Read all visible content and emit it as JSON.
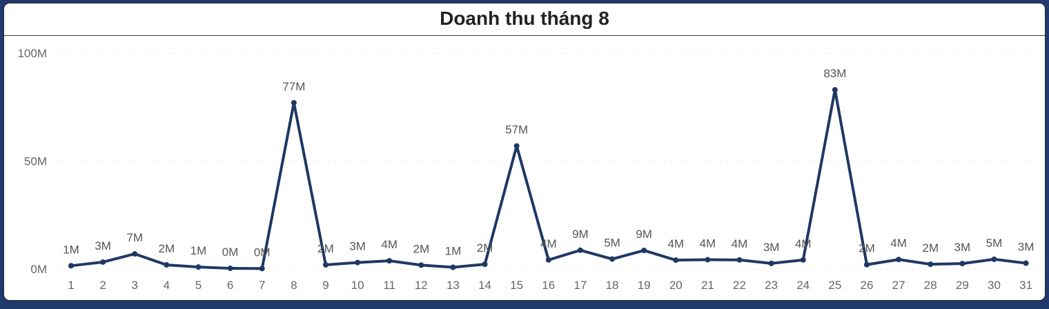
{
  "chart_data": {
    "type": "line",
    "title": "Doanh thu tháng 8",
    "xlabel": "",
    "ylabel": "",
    "ylim": [
      0,
      100
    ],
    "unit": "M",
    "grid": true,
    "yticks": [
      {
        "value": 0,
        "label": "0M"
      },
      {
        "value": 50,
        "label": "50M"
      },
      {
        "value": 100,
        "label": "100M"
      }
    ],
    "categories": [
      "1",
      "2",
      "3",
      "4",
      "5",
      "6",
      "7",
      "8",
      "9",
      "10",
      "11",
      "12",
      "13",
      "14",
      "15",
      "16",
      "17",
      "18",
      "19",
      "20",
      "21",
      "22",
      "23",
      "24",
      "25",
      "26",
      "27",
      "28",
      "29",
      "30",
      "31"
    ],
    "series": [
      {
        "color": "#1f3864",
        "values": [
          1.5,
          3.2,
          7.0,
          1.9,
          0.9,
          0.3,
          0.2,
          77,
          1.9,
          3.0,
          3.8,
          1.8,
          0.8,
          2.2,
          57,
          4.2,
          8.7,
          4.6,
          8.6,
          4.1,
          4.3,
          4.2,
          2.6,
          4.2,
          83,
          2.0,
          4.4,
          2.2,
          2.5,
          4.5,
          2.7
        ],
        "labels": [
          "1M",
          "3M",
          "7M",
          "2M",
          "1M",
          "0M",
          "0M",
          "77M",
          "2M",
          "3M",
          "4M",
          "2M",
          "1M",
          "2M",
          "57M",
          "4M",
          "9M",
          "5M",
          "9M",
          "4M",
          "4M",
          "4M",
          "3M",
          "4M",
          "83M",
          "2M",
          "4M",
          "2M",
          "3M",
          "5M",
          "3M"
        ]
      }
    ]
  }
}
